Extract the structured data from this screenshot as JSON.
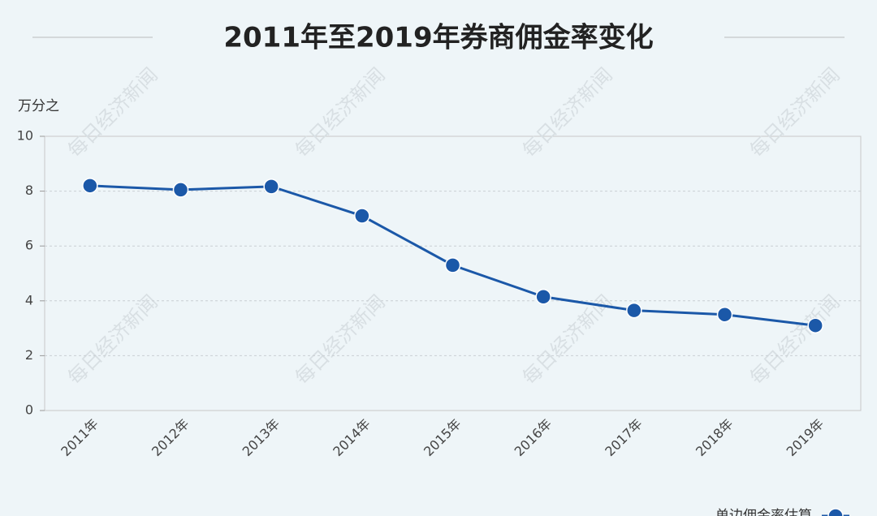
{
  "chart_data": {
    "type": "line",
    "title": "2011年至2019年券商佣金率变化",
    "y_label": "万分之",
    "watermark": "每日经济新闻",
    "categories": [
      "2011年",
      "2012年",
      "2013年",
      "2014年",
      "2015年",
      "2016年",
      "2017年",
      "2018年",
      "2019年"
    ],
    "series": [
      {
        "name": "单边佣金率估算",
        "color": "#1b58a8",
        "values": [
          8.2,
          8.05,
          8.17,
          7.1,
          5.3,
          4.15,
          3.65,
          3.5,
          3.1
        ]
      }
    ],
    "ylim": [
      0,
      10
    ],
    "yticks": [
      0,
      2,
      4,
      6,
      8,
      10
    ],
    "grid": true,
    "legend": "bottom-right"
  }
}
